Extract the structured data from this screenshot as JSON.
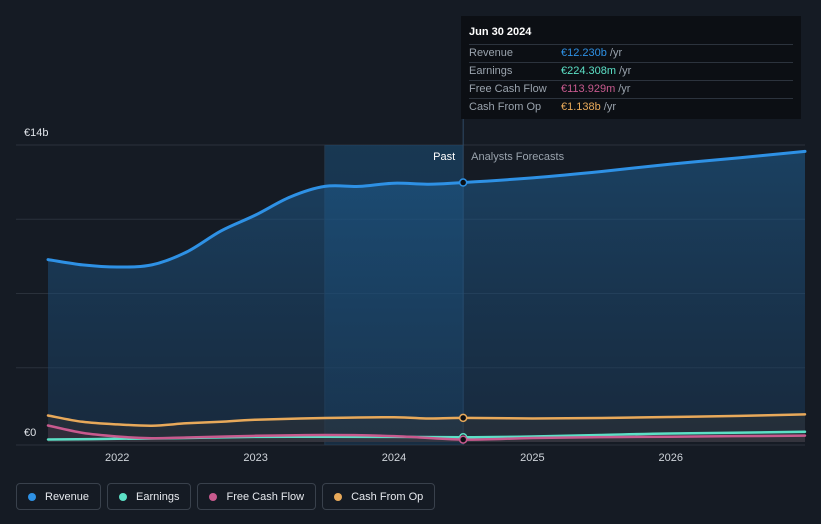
{
  "chart_data": {
    "type": "area",
    "y_axis": {
      "max_label": "€14b",
      "min_label": "€0",
      "ylim": [
        0,
        14000
      ]
    },
    "x_ticks": [
      "2022",
      "2023",
      "2024",
      "2025",
      "2026"
    ],
    "x_range": [
      2021.5,
      2026.97
    ],
    "region_labels": {
      "past": "Past",
      "forecast": "Analysts Forecasts"
    },
    "past_shade_start": 2023.5,
    "divider": 2024.5,
    "grid": true,
    "legend_position": "bottom-left",
    "series": [
      {
        "name": "Revenue",
        "color": "#2e91e5",
        "points": [
          [
            2021.5,
            8600
          ],
          [
            2021.75,
            8350
          ],
          [
            2022.0,
            8250
          ],
          [
            2022.25,
            8350
          ],
          [
            2022.5,
            8950
          ],
          [
            2022.75,
            9950
          ],
          [
            2023.0,
            10700
          ],
          [
            2023.25,
            11550
          ],
          [
            2023.5,
            12050
          ],
          [
            2023.75,
            12050
          ],
          [
            2024.0,
            12200
          ],
          [
            2024.25,
            12150
          ],
          [
            2024.5,
            12230
          ],
          [
            2025.0,
            12450
          ],
          [
            2025.5,
            12750
          ],
          [
            2026.0,
            13100
          ],
          [
            2026.5,
            13400
          ],
          [
            2026.97,
            13700
          ]
        ]
      },
      {
        "name": "Earnings",
        "color": "#5ce0c6",
        "points": [
          [
            2021.5,
            120
          ],
          [
            2022.0,
            150
          ],
          [
            2022.5,
            190
          ],
          [
            2023.0,
            240
          ],
          [
            2023.5,
            250
          ],
          [
            2024.0,
            240
          ],
          [
            2024.5,
            224
          ],
          [
            2025.0,
            260
          ],
          [
            2025.5,
            330
          ],
          [
            2026.0,
            400
          ],
          [
            2026.97,
            480
          ]
        ]
      },
      {
        "name": "Free Cash Flow",
        "color": "#c85a8e",
        "points": [
          [
            2021.5,
            780
          ],
          [
            2021.75,
            430
          ],
          [
            2022.0,
            260
          ],
          [
            2022.25,
            180
          ],
          [
            2022.5,
            210
          ],
          [
            2023.0,
            290
          ],
          [
            2023.5,
            330
          ],
          [
            2024.0,
            280
          ],
          [
            2024.5,
            114
          ],
          [
            2025.0,
            190
          ],
          [
            2025.5,
            230
          ],
          [
            2026.0,
            250
          ],
          [
            2026.97,
            300
          ]
        ]
      },
      {
        "name": "Cash From Op",
        "color": "#e8a95a",
        "points": [
          [
            2021.5,
            1250
          ],
          [
            2021.75,
            950
          ],
          [
            2022.0,
            830
          ],
          [
            2022.25,
            770
          ],
          [
            2022.5,
            880
          ],
          [
            2022.75,
            950
          ],
          [
            2023.0,
            1050
          ],
          [
            2023.5,
            1130
          ],
          [
            2024.0,
            1170
          ],
          [
            2024.25,
            1110
          ],
          [
            2024.5,
            1138
          ],
          [
            2025.0,
            1110
          ],
          [
            2025.5,
            1130
          ],
          [
            2026.0,
            1180
          ],
          [
            2026.5,
            1230
          ],
          [
            2026.97,
            1300
          ]
        ]
      }
    ]
  },
  "tooltip": {
    "date": "Jun 30 2024",
    "rows": [
      {
        "label": "Revenue",
        "value": "€12.230b",
        "unit": "/yr",
        "color": "#2e91e5"
      },
      {
        "label": "Earnings",
        "value": "€224.308m",
        "unit": "/yr",
        "color": "#5ce0c6"
      },
      {
        "label": "Free Cash Flow",
        "value": "€113.929m",
        "unit": "/yr",
        "color": "#c85a8e"
      },
      {
        "label": "Cash From Op",
        "value": "€1.138b",
        "unit": "/yr",
        "color": "#e8a95a"
      }
    ]
  },
  "legend": [
    {
      "label": "Revenue",
      "color": "#2e91e5"
    },
    {
      "label": "Earnings",
      "color": "#5ce0c6"
    },
    {
      "label": "Free Cash Flow",
      "color": "#c85a8e"
    },
    {
      "label": "Cash From Op",
      "color": "#e8a95a"
    }
  ]
}
